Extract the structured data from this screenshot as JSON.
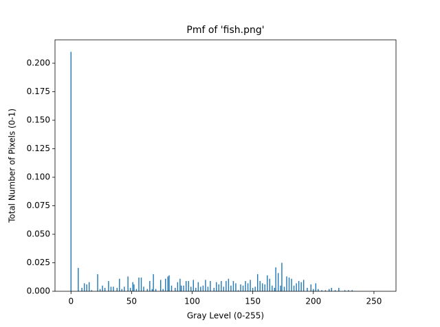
{
  "chart_data": {
    "type": "bar",
    "title": "Pmf of 'fish.png'",
    "xlabel": "Gray Level (0-255)",
    "ylabel": "Total Number of Pixels (0-1)",
    "color": "#1f77b4",
    "x": [
      0,
      6,
      9,
      11,
      13,
      15,
      17,
      22,
      24,
      26,
      28,
      31,
      33,
      35,
      38,
      40,
      42,
      44,
      47,
      49,
      51,
      52,
      54,
      56,
      58,
      60,
      63,
      65,
      67,
      68,
      70,
      74,
      76,
      78,
      80,
      81,
      83,
      86,
      88,
      90,
      91,
      93,
      95,
      97,
      99,
      101,
      103,
      105,
      107,
      109,
      111,
      113,
      115,
      118,
      120,
      122,
      124,
      126,
      128,
      130,
      132,
      134,
      136,
      138,
      140,
      142,
      144,
      146,
      148,
      150,
      152,
      154,
      156,
      158,
      160,
      162,
      164,
      166,
      168,
      169,
      171,
      173,
      174,
      176,
      178,
      180,
      182,
      184,
      186,
      188,
      190,
      192,
      195,
      198,
      200,
      202,
      204,
      207,
      210,
      213,
      215,
      218,
      221,
      226,
      229,
      232
    ],
    "values": [
      0.21,
      0.0205,
      0.003,
      0.007,
      0.006,
      0.008,
      0.001,
      0.015,
      0.002,
      0.005,
      0.003,
      0.009,
      0.004,
      0.004,
      0.003,
      0.011,
      0.002,
      0.004,
      0.013,
      0.003,
      0.008,
      0.006,
      0.002,
      0.012,
      0.012,
      0.004,
      0.002,
      0.009,
      0.002,
      0.015,
      0.002,
      0.01,
      0.002,
      0.011,
      0.013,
      0.014,
      0.005,
      0.003,
      0.008,
      0.011,
      0.005,
      0.005,
      0.009,
      0.009,
      0.004,
      0.01,
      0.003,
      0.008,
      0.004,
      0.005,
      0.01,
      0.004,
      0.009,
      0.003,
      0.008,
      0.006,
      0.009,
      0.004,
      0.009,
      0.011,
      0.005,
      0.009,
      0.007,
      0.001,
      0.006,
      0.005,
      0.009,
      0.007,
      0.01,
      0.003,
      0.004,
      0.015,
      0.009,
      0.007,
      0.006,
      0.014,
      0.011,
      0.005,
      0.003,
      0.021,
      0.016,
      0.005,
      0.025,
      0.004,
      0.013,
      0.012,
      0.011,
      0.005,
      0.007,
      0.009,
      0.008,
      0.01,
      0.003,
      0.006,
      0.002,
      0.007,
      0.002,
      0.001,
      0.001,
      0.002,
      0.003,
      0.001,
      0.003,
      0.001,
      0.001,
      0.001
    ],
    "xlim": [
      -13.2,
      268.2
    ],
    "xticks": [
      0,
      50,
      100,
      150,
      200,
      250
    ],
    "ylim": [
      0,
      0.2205
    ],
    "yticks": [
      {
        "value": 0,
        "label": "0.000"
      },
      {
        "value": 0.025,
        "label": "0.025"
      },
      {
        "value": 0.05,
        "label": "0.050"
      },
      {
        "value": 0.075,
        "label": "0.075"
      },
      {
        "value": 0.1,
        "label": "0.100"
      },
      {
        "value": 0.125,
        "label": "0.125"
      },
      {
        "value": 0.15,
        "label": "0.150"
      },
      {
        "value": 0.175,
        "label": "0.175"
      },
      {
        "value": 0.2,
        "label": "0.200"
      }
    ]
  }
}
